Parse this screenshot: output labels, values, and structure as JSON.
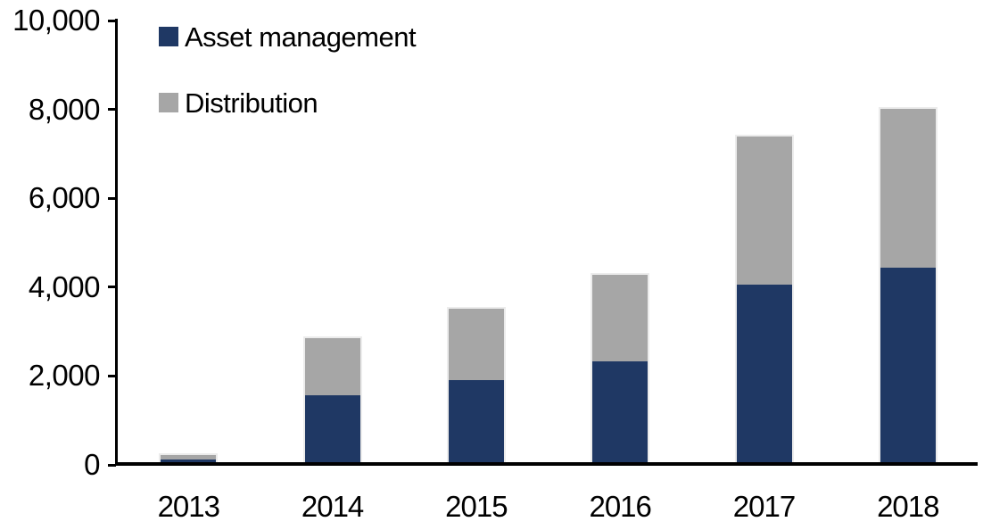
{
  "chart_data": {
    "type": "bar",
    "stacked": true,
    "title": "",
    "xlabel": "",
    "ylabel": "",
    "categories": [
      "2013",
      "2014",
      "2015",
      "2016",
      "2017",
      "2018"
    ],
    "series": [
      {
        "name": "Asset management",
        "color": "#1f3864",
        "values": [
          120,
          1570,
          1900,
          2320,
          4060,
          4430
        ]
      },
      {
        "name": "Distribution",
        "color": "#a6a6a6",
        "values": [
          110,
          1290,
          1600,
          1950,
          3340,
          3570
        ]
      }
    ],
    "stack_totals": [
      230,
      2860,
      3500,
      4270,
      7400,
      8000
    ],
    "ylim": [
      0,
      10000
    ],
    "yticks": [
      {
        "value": 0,
        "label": "0"
      },
      {
        "value": 2000,
        "label": "2,000"
      },
      {
        "value": 4000,
        "label": "4,000"
      },
      {
        "value": 6000,
        "label": "6,000"
      },
      {
        "value": 8000,
        "label": "8,000"
      },
      {
        "value": 10000,
        "label": "10,000"
      }
    ],
    "grid": false,
    "legend_position": "inside-top-left",
    "axis_color": "#000000",
    "background_color": "#ffffff",
    "bar_outline_color": "#ececec"
  }
}
